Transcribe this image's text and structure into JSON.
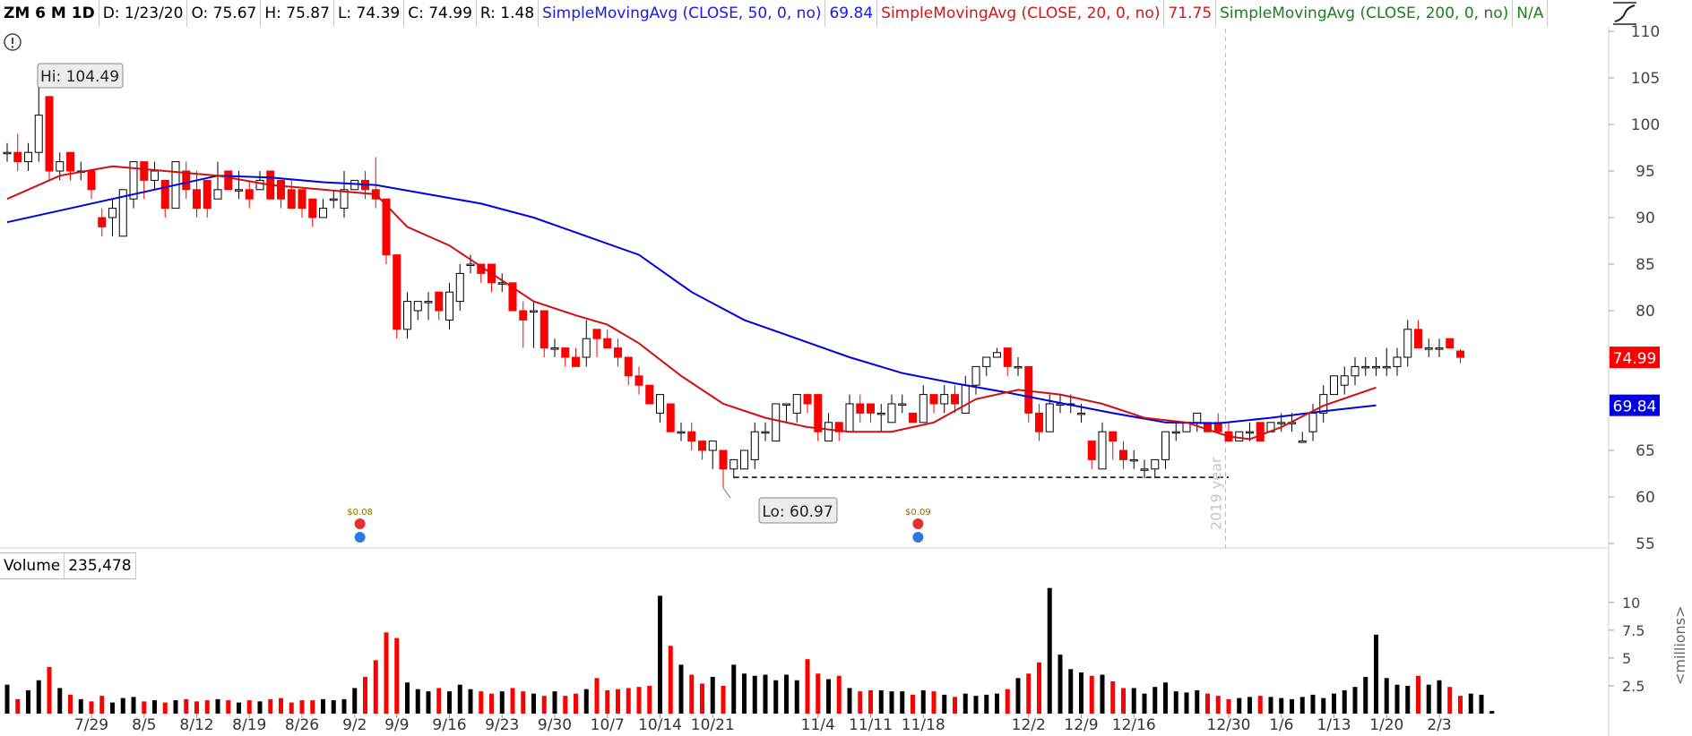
{
  "header": {
    "symbol": "ZM 6 M 1D",
    "date": "D: 1/23/20",
    "open": "O: 75.67",
    "high": "H: 75.87",
    "low": "L: 74.39",
    "close": "C: 74.99",
    "range": "R: 1.48",
    "sma50_label": "SimpleMovingAvg (CLOSE, 50, 0, no)",
    "sma50_value": "69.84",
    "sma20_label": "SimpleMovingAvg (CLOSE, 20, 0, no)",
    "sma20_value": "71.75",
    "sma200_label": "SimpleMovingAvg (CLOSE, 200, 0, no)",
    "sma200_value": "N/A"
  },
  "volume_header": {
    "label": "Volume",
    "value": "235,478"
  },
  "colors": {
    "up": "#000000",
    "down": "#ff0000",
    "sma50": "#0000e0",
    "sma20": "#d01010",
    "sma200": "#1d7d1d",
    "close_badge": "#ff0000",
    "sma50_badge": "#0000e0"
  },
  "icons": {
    "alert": "exclamation-circle-icon",
    "drawing": "drawing-tools-icon",
    "dividend": "dividend-icon",
    "earnings": "earnings-icon"
  },
  "chart_data": {
    "type": "candlestick",
    "price_axis": {
      "min": 55,
      "max": 110,
      "ticks": [
        55,
        60,
        65,
        70,
        75,
        80,
        85,
        90,
        95,
        100,
        105,
        110
      ]
    },
    "volume_axis": {
      "min": 0,
      "max": 12,
      "ticks": [
        {
          "v": 2.5,
          "l": "2.5"
        },
        {
          "v": 5,
          "l": "5"
        },
        {
          "v": 7.5,
          "l": "7.5"
        },
        {
          "v": 10,
          "l": "10"
        }
      ],
      "unit_label": "<millions>"
    },
    "x_labels": [
      {
        "i": 8,
        "l": "7/29"
      },
      {
        "i": 13,
        "l": "8/5"
      },
      {
        "i": 18,
        "l": "8/12"
      },
      {
        "i": 23,
        "l": "8/19"
      },
      {
        "i": 28,
        "l": "8/26"
      },
      {
        "i": 33,
        "l": "9/2"
      },
      {
        "i": 37,
        "l": "9/9"
      },
      {
        "i": 42,
        "l": "9/16"
      },
      {
        "i": 47,
        "l": "9/23"
      },
      {
        "i": 52,
        "l": "9/30"
      },
      {
        "i": 57,
        "l": "10/7"
      },
      {
        "i": 62,
        "l": "10/14"
      },
      {
        "i": 67,
        "l": "10/21"
      },
      {
        "i": 77,
        "l": "11/4"
      },
      {
        "i": 82,
        "l": "11/11"
      },
      {
        "i": 87,
        "l": "11/18"
      },
      {
        "i": 97,
        "l": "12/2"
      },
      {
        "i": 102,
        "l": "12/9"
      },
      {
        "i": 107,
        "l": "12/16"
      },
      {
        "i": 116,
        "l": "12/30"
      },
      {
        "i": 121,
        "l": "1/6"
      },
      {
        "i": 126,
        "l": "1/13"
      },
      {
        "i": 131,
        "l": "1/20"
      },
      {
        "i": 136,
        "l": "2/3"
      }
    ],
    "ohlc": [
      [
        97,
        98,
        96,
        97
      ],
      [
        97,
        99,
        95,
        96
      ],
      [
        96,
        98,
        95,
        97
      ],
      [
        97,
        104.49,
        96,
        101
      ],
      [
        103,
        103,
        94,
        95
      ],
      [
        95,
        97,
        94,
        96
      ],
      [
        97,
        97,
        94,
        95
      ],
      [
        95,
        96,
        94,
        95
      ],
      [
        95,
        95,
        92,
        93
      ],
      [
        90,
        91,
        88,
        89
      ],
      [
        90,
        92,
        88,
        91
      ],
      [
        88,
        93,
        88,
        93
      ],
      [
        92,
        96,
        91,
        96
      ],
      [
        96,
        96,
        92,
        94
      ],
      [
        94,
        96,
        93,
        95
      ],
      [
        94,
        94,
        90,
        91
      ],
      [
        91,
        96,
        91,
        96
      ],
      [
        95,
        96,
        92,
        93
      ],
      [
        93,
        95,
        90,
        91
      ],
      [
        94,
        94,
        90,
        91
      ],
      [
        92,
        96,
        92,
        93
      ],
      [
        95,
        95,
        93,
        93
      ],
      [
        93,
        95,
        92,
        93
      ],
      [
        93,
        94,
        91,
        92
      ],
      [
        93,
        95,
        93,
        94
      ],
      [
        95,
        95,
        92,
        92
      ],
      [
        94,
        94,
        91,
        92
      ],
      [
        93,
        94,
        91,
        91
      ],
      [
        93,
        93,
        90,
        91
      ],
      [
        92,
        92,
        89,
        90
      ],
      [
        90,
        92,
        90,
        91
      ],
      [
        92,
        93,
        91,
        92
      ],
      [
        91,
        95,
        90,
        93
      ],
      [
        93,
        94,
        93,
        94
      ],
      [
        94,
        95,
        92,
        93
      ],
      [
        93,
        96.5,
        91,
        92
      ],
      [
        92,
        92,
        85,
        86
      ],
      [
        86,
        86,
        77,
        78
      ],
      [
        78,
        82,
        77,
        81
      ],
      [
        80,
        81,
        79,
        81
      ],
      [
        81,
        82,
        79,
        81
      ],
      [
        82,
        82,
        79,
        80
      ],
      [
        79,
        83,
        78,
        82
      ],
      [
        81,
        85,
        80,
        84
      ],
      [
        85,
        86,
        84,
        85
      ],
      [
        85,
        85,
        83,
        84
      ],
      [
        85,
        85,
        82,
        83
      ],
      [
        83,
        84,
        82,
        83
      ],
      [
        83,
        83,
        80,
        80
      ],
      [
        80,
        81,
        76,
        79
      ],
      [
        80,
        81,
        76,
        80
      ],
      [
        80,
        80,
        75,
        76
      ],
      [
        76,
        77,
        75,
        76
      ],
      [
        76,
        76,
        74,
        75
      ],
      [
        75,
        76,
        74,
        74
      ],
      [
        75,
        79,
        74,
        77
      ],
      [
        78,
        78,
        75,
        77
      ],
      [
        77,
        78,
        76,
        76
      ],
      [
        76,
        77,
        74,
        75
      ],
      [
        75,
        75,
        72,
        73
      ],
      [
        73,
        74,
        71,
        72
      ],
      [
        72,
        72,
        70,
        70
      ],
      [
        69,
        71,
        68,
        71
      ],
      [
        70,
        70,
        67,
        67
      ],
      [
        67,
        68,
        66,
        67
      ],
      [
        67,
        68,
        65,
        66
      ],
      [
        66,
        66,
        64,
        65
      ],
      [
        65,
        66,
        63,
        66
      ],
      [
        65,
        65,
        60.97,
        63
      ],
      [
        63,
        64,
        62,
        64
      ],
      [
        63,
        65,
        63,
        65
      ],
      [
        64,
        68,
        63,
        67
      ],
      [
        67,
        68,
        66,
        67
      ],
      [
        66,
        70,
        66,
        70
      ],
      [
        70,
        70,
        68,
        70
      ],
      [
        69,
        71,
        68,
        71
      ],
      [
        71,
        71,
        69,
        70
      ],
      [
        71,
        71,
        66,
        67
      ],
      [
        66,
        69,
        66,
        68
      ],
      [
        68,
        68,
        66,
        67
      ],
      [
        67,
        71,
        67,
        70
      ],
      [
        70,
        71,
        68,
        69
      ],
      [
        70,
        70,
        68,
        69
      ],
      [
        69,
        70,
        67,
        69
      ],
      [
        68,
        71,
        68,
        70
      ],
      [
        70,
        71,
        69,
        70
      ],
      [
        69,
        69,
        68,
        68
      ],
      [
        68,
        72,
        68,
        71
      ],
      [
        71,
        71,
        69,
        70
      ],
      [
        70,
        72,
        69,
        71
      ],
      [
        71,
        72,
        69,
        70
      ],
      [
        69,
        73,
        69,
        72
      ],
      [
        72,
        74,
        71,
        74
      ],
      [
        74,
        75,
        73,
        75
      ],
      [
        75,
        76,
        75,
        75.5
      ],
      [
        76,
        76,
        73,
        74
      ],
      [
        74,
        75,
        73,
        74
      ],
      [
        74,
        74,
        68,
        69
      ],
      [
        69,
        70,
        66,
        67
      ],
      [
        67,
        71,
        67,
        70
      ],
      [
        70,
        71,
        69,
        70
      ],
      [
        70,
        71,
        69,
        70
      ],
      [
        69,
        70,
        68,
        69
      ],
      [
        66,
        66,
        63,
        64
      ],
      [
        63,
        68,
        63,
        67
      ],
      [
        67,
        67,
        64,
        66
      ],
      [
        65,
        66,
        63,
        64
      ],
      [
        64,
        65,
        63,
        64
      ],
      [
        63,
        64,
        62,
        63
      ],
      [
        63,
        64,
        62,
        64
      ],
      [
        64,
        67,
        63,
        67
      ],
      [
        67,
        68,
        66,
        67
      ],
      [
        67,
        68,
        67,
        68
      ],
      [
        68,
        69,
        67,
        69
      ],
      [
        68,
        68,
        67,
        67
      ],
      [
        68,
        69,
        67,
        67
      ],
      [
        67,
        68,
        66,
        66
      ],
      [
        66,
        67,
        66,
        67
      ],
      [
        67,
        68,
        66,
        67
      ],
      [
        68,
        68,
        66,
        66
      ],
      [
        67,
        68,
        67,
        68
      ],
      [
        68,
        69,
        67,
        68
      ],
      [
        68,
        69,
        67,
        68
      ]
    ],
    "ohlc_tail": [
      [
        66,
        67,
        66,
        66
      ],
      [
        67,
        70,
        66,
        69
      ],
      [
        69,
        72,
        68,
        71
      ],
      [
        71,
        73,
        71,
        73
      ],
      [
        72,
        74,
        71,
        73
      ],
      [
        73,
        75,
        72,
        74
      ],
      [
        74,
        75,
        73,
        74
      ],
      [
        74,
        75,
        73,
        74
      ],
      [
        74,
        76,
        73,
        74
      ],
      [
        74,
        76,
        73,
        75
      ],
      [
        75,
        79,
        74,
        78
      ],
      [
        78,
        79,
        76,
        76
      ],
      [
        76,
        77,
        75,
        76
      ],
      [
        76,
        77,
        75,
        76
      ],
      [
        77,
        77,
        76,
        76
      ],
      [
        75.67,
        75.87,
        74.39,
        74.99
      ]
    ],
    "volume": [
      2.6,
      1.3,
      2.1,
      3.0,
      4.2,
      2.3,
      1.7,
      1.3,
      1.1,
      1.6,
      1.0,
      1.4,
      1.5,
      1.1,
      1.2,
      1.0,
      1.2,
      1.3,
      1.1,
      1.2,
      1.3,
      1.2,
      1.0,
      1.2,
      1.1,
      1.3,
      1.4,
      1.0,
      1.2,
      1.2,
      1.3,
      1.2,
      1.3,
      2.3,
      3.3,
      4.8,
      7.3,
      6.8,
      2.8,
      2.2,
      2.0,
      2.3,
      2.0,
      2.6,
      2.2,
      2.0,
      1.8,
      2.0,
      2.3,
      2.0,
      1.8,
      1.6,
      2.0,
      1.6,
      1.8,
      2.2,
      3.2,
      2.1,
      2.2,
      2.3,
      2.4,
      2.5,
      10.6,
      6.1,
      4.4,
      3.5,
      2.7,
      3.3,
      2.5,
      4.4,
      3.6,
      3.4,
      3.5,
      3.0,
      3.5,
      3.0,
      4.9,
      3.6,
      3.1,
      3.4,
      2.3,
      2.0,
      2.1,
      2.1,
      2.0,
      2.0,
      1.7,
      2.1,
      2.0,
      1.7,
      1.5,
      1.8,
      1.6,
      1.7,
      1.8,
      2.2,
      3.2,
      3.6,
      4.6,
      11.3,
      5.3,
      4.0,
      3.7,
      3.4,
      3.5,
      2.9,
      2.3,
      2.3,
      1.8,
      2.4,
      2.8,
      2.0,
      1.9,
      2.1,
      1.8,
      1.6,
      1.3,
      1.4,
      1.5,
      1.6,
      1.5,
      1.4,
      1.3,
      1.5,
      1.7,
      1.4,
      1.8,
      2.1,
      2.4,
      3.3,
      7.1,
      3.2,
      2.6,
      2.5,
      3.4,
      2.6,
      3.0,
      2.4,
      1.6,
      1.8,
      1.7,
      0.24
    ],
    "sma50": [
      [
        0,
        89.5
      ],
      [
        10,
        92
      ],
      [
        20,
        94.5
      ],
      [
        25,
        94.3
      ],
      [
        30,
        93.8
      ],
      [
        35,
        93.5
      ],
      [
        40,
        92.5
      ],
      [
        45,
        91.5
      ],
      [
        50,
        90
      ],
      [
        55,
        88
      ],
      [
        60,
        86
      ],
      [
        65,
        82
      ],
      [
        70,
        79
      ],
      [
        75,
        77
      ],
      [
        80,
        75
      ],
      [
        85,
        73.3
      ],
      [
        90,
        72.2
      ],
      [
        95,
        71.2
      ],
      [
        100,
        70.1
      ],
      [
        105,
        69
      ],
      [
        110,
        68
      ],
      [
        115,
        67.9
      ],
      [
        120,
        68.5
      ],
      [
        125,
        69.2
      ],
      [
        130,
        69.84
      ]
    ],
    "sma20": [
      [
        0,
        92
      ],
      [
        5,
        94.5
      ],
      [
        10,
        95.5
      ],
      [
        15,
        95
      ],
      [
        20,
        94.5
      ],
      [
        25,
        93.5
      ],
      [
        30,
        93
      ],
      [
        35,
        92.5
      ],
      [
        38,
        89
      ],
      [
        42,
        87
      ],
      [
        46,
        84
      ],
      [
        50,
        81
      ],
      [
        54,
        79.5
      ],
      [
        57,
        78.5
      ],
      [
        60,
        76.5
      ],
      [
        64,
        73
      ],
      [
        68,
        70
      ],
      [
        72,
        68.5
      ],
      [
        76,
        67.5
      ],
      [
        80,
        67
      ],
      [
        84,
        67
      ],
      [
        88,
        68
      ],
      [
        92,
        70.5
      ],
      [
        96,
        71.5
      ],
      [
        100,
        71
      ],
      [
        104,
        70
      ],
      [
        108,
        68.5
      ],
      [
        112,
        68
      ],
      [
        116,
        66.5
      ],
      [
        118,
        66.2
      ],
      [
        121,
        67.5
      ],
      [
        125,
        69.8
      ],
      [
        130,
        71.75
      ]
    ],
    "support_line": {
      "value": 62.1,
      "from": 69,
      "to": 116
    },
    "annotations": {
      "hi": "Hi: 104.49",
      "lo": "Lo: 60.97",
      "year_marker": "2019 year",
      "close_badge": "74.99",
      "sma50_badge": "69.84",
      "dividend1": "$0.08",
      "dividend2": "$0.09"
    }
  }
}
